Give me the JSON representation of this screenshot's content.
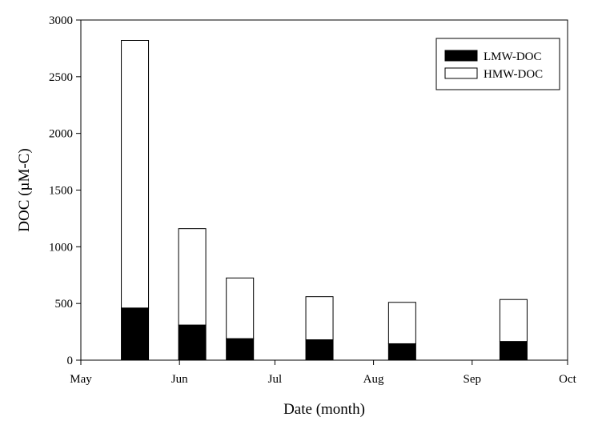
{
  "chart_data": {
    "type": "bar",
    "stacked": true,
    "xlabel": "Date (month)",
    "ylabel": "DOC (µM-C)",
    "ylim": [
      0,
      3000
    ],
    "yticks": [
      0,
      500,
      1000,
      1500,
      2000,
      2500,
      3000
    ],
    "xaxis": {
      "type": "month",
      "range": [
        "May",
        "Oct"
      ],
      "tick_labels": [
        "May",
        "Jun",
        "Jul",
        "Aug",
        "Sep",
        "Oct"
      ]
    },
    "x": [
      "May 18",
      "Jun 5",
      "Jun 20",
      "Jul 15",
      "Aug 10",
      "Sep 14"
    ],
    "series": [
      {
        "name": "LMW-DOC",
        "color": "#000000",
        "values": [
          460,
          310,
          190,
          180,
          145,
          165
        ]
      },
      {
        "name": "HMW-DOC",
        "color": "#ffffff",
        "values": [
          2360,
          850,
          535,
          380,
          365,
          370
        ]
      }
    ],
    "totals": [
      2820,
      1160,
      725,
      560,
      510,
      535
    ],
    "legend": {
      "placement": "top-right",
      "entries": [
        "LMW-DOC",
        "HMW-DOC"
      ]
    },
    "grid": false
  }
}
